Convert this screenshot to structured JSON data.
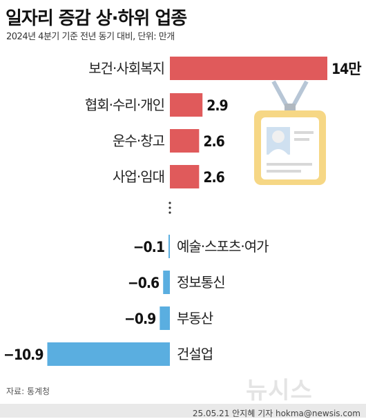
{
  "header": {
    "title": "일자리 증감 상·하위 업종",
    "subtitle": "2024년 4분기 기준 전년 동기 대비, 단위: 만개"
  },
  "chart_data": {
    "type": "bar",
    "orientation": "horizontal",
    "title": "일자리 증감 상·하위 업종",
    "subtitle": "2024년 4분기 기준 전년 동기 대비, 단위: 만개",
    "unit": "만개",
    "categories": [
      "보건·사회복지",
      "협회·수리·개인",
      "운수·창고",
      "사업·임대",
      "예술·스포츠·여가",
      "정보통신",
      "부동산",
      "건설업"
    ],
    "values": [
      14,
      2.9,
      2.6,
      2.6,
      -0.1,
      -0.6,
      -0.9,
      -10.9
    ],
    "labels": [
      "14만",
      "2.9",
      "2.6",
      "2.6",
      "−0.1",
      "−0.6",
      "−0.9",
      "−10.9"
    ],
    "colors": {
      "positive": "#e05a5b",
      "negative": "#5aaee0"
    }
  },
  "footer": {
    "source": "자료: 통계청",
    "credit": "25.05.21 안지혜 기자 hokma@newsis.com",
    "logo": "뉴시스"
  }
}
